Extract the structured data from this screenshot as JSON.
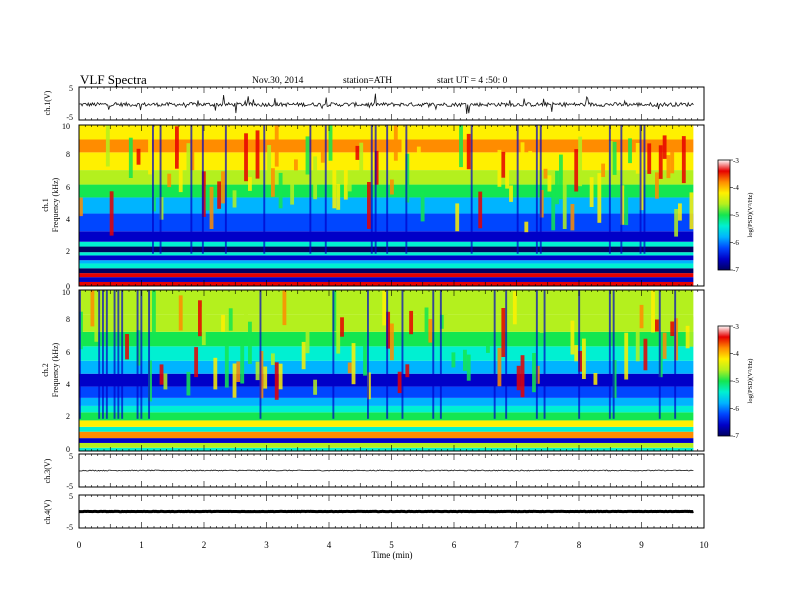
{
  "header": {
    "title": "VLF  Spectra",
    "date": "Nov.30, 2014",
    "station": "station=ATH",
    "start": "start  UT  =   4  :50: 0"
  },
  "colors": {
    "colormap": [
      "#000060",
      "#0000c8",
      "#0046ff",
      "#00b4ff",
      "#00f0d2",
      "#14e650",
      "#b4f01e",
      "#fff000",
      "#ff8c00",
      "#e60000",
      "#ffffff"
    ]
  },
  "chart_data": [
    {
      "type": "line",
      "ylabel": "ch.1(V)",
      "ylim": [
        -5,
        5
      ],
      "yticks": [
        "5",
        "-5"
      ],
      "baseline": -0.3,
      "noise": 0.6,
      "series": [
        {
          "samples": 600
        }
      ]
    },
    {
      "type": "heatmap",
      "ylabel_channel": "ch.1",
      "ylabel": "Frequency  (kHz)",
      "ylim": [
        0,
        10
      ],
      "yticks": [
        "0",
        "2",
        "4",
        "6",
        "8",
        "10"
      ],
      "colorbar": {
        "label": "log(PSD)(V²/Hz)",
        "range": [
          -7,
          -3
        ],
        "ticks": [
          "-3",
          "-4",
          "-5",
          "-6",
          "-7"
        ]
      }
    },
    {
      "type": "heatmap",
      "ylabel_channel": "ch.2",
      "ylabel": "Frequency  (kHz)",
      "ylim": [
        0,
        10
      ],
      "yticks": [
        "0",
        "2",
        "4",
        "6",
        "8",
        "10"
      ],
      "colorbar": {
        "label": "log(PSD)(V²/Hz)",
        "range": [
          -7,
          -3
        ],
        "ticks": [
          "-3",
          "-4",
          "-5",
          "-6",
          "-7"
        ]
      }
    },
    {
      "type": "line",
      "ylabel": "ch.3(V)",
      "ylim": [
        -5,
        5
      ],
      "yticks": [
        "5",
        "-5"
      ],
      "baseline": 0,
      "noise": 0.15,
      "series": [
        {
          "samples": 600
        }
      ]
    },
    {
      "type": "line",
      "ylabel": "ch.4(V)",
      "ylim": [
        -5,
        5
      ],
      "yticks": [
        "5",
        "-5"
      ],
      "baseline": 0,
      "noise": 0.05,
      "series": [
        {
          "samples": 600
        }
      ]
    }
  ],
  "xaxis": {
    "label": "Time  (min)",
    "range": [
      0,
      10
    ],
    "data_end": 9.83,
    "ticks": [
      "0",
      "1",
      "2",
      "3",
      "4",
      "5",
      "6",
      "7",
      "8",
      "9",
      "10"
    ]
  }
}
